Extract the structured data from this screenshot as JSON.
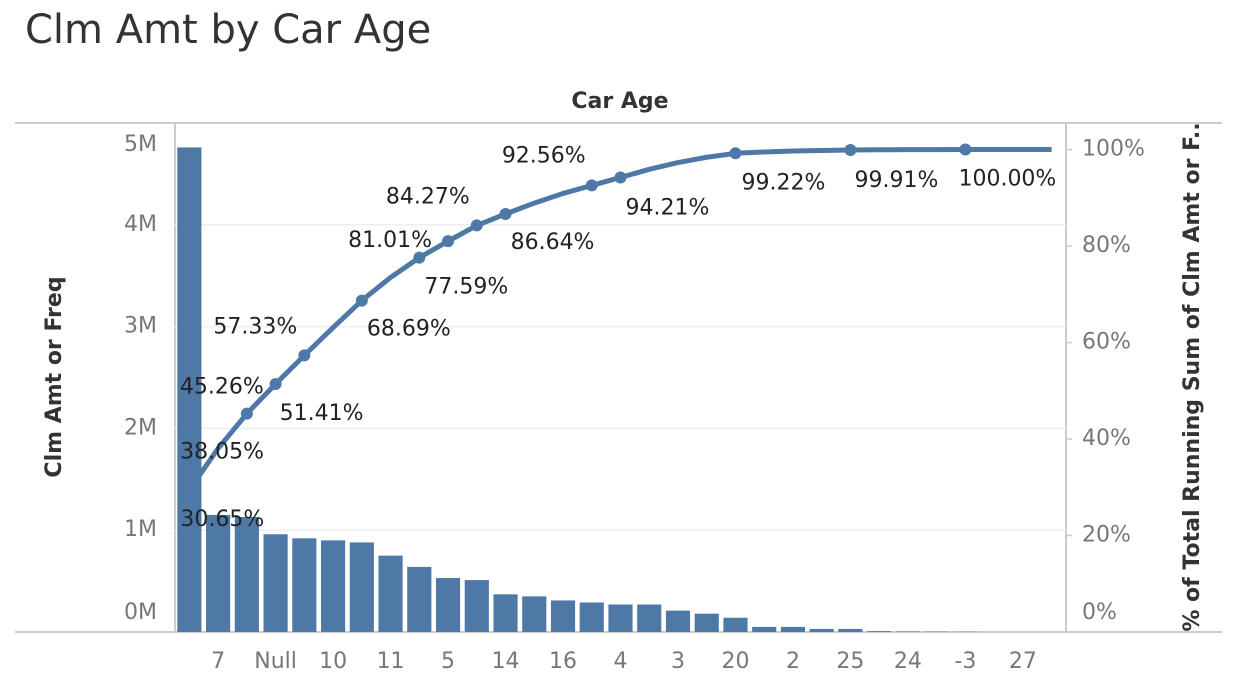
{
  "chart_data": {
    "type": "pareto",
    "title": "Clm Amt by Car Age",
    "x_label": "Car Age",
    "y_label": "Clm Amt or Freq",
    "y2_label": "% of Total Running Sum of Clm Amt or F..",
    "categories": [
      null,
      "7",
      null,
      "Null",
      null,
      "10",
      null,
      "11",
      null,
      "5",
      null,
      "14",
      null,
      "16",
      null,
      "4",
      null,
      "3",
      null,
      "20",
      null,
      "2",
      null,
      "25",
      null,
      "24",
      null,
      "-3",
      null,
      "27",
      null
    ],
    "series": [
      {
        "name": "Clm Amt or Freq",
        "color": "#4e79a7",
        "values": [
          4760000,
          1150000,
          1130000,
          960000,
          920000,
          900000,
          880000,
          750000,
          640000,
          530000,
          510000,
          370000,
          350000,
          310000,
          290000,
          270000,
          270000,
          210000,
          180000,
          140000,
          50000,
          50000,
          30000,
          30000,
          8000,
          5000,
          3000,
          2000,
          0,
          0,
          0
        ]
      },
      {
        "name": "% of Total Running Sum of Clm Amt or F..",
        "color": "#4e79a7",
        "axis": "y2",
        "values": [
          30.65,
          38.05,
          45.26,
          51.41,
          57.33,
          63.1,
          68.69,
          73.5,
          77.59,
          81.01,
          84.27,
          86.64,
          88.9,
          90.9,
          92.56,
          94.21,
          95.9,
          97.3,
          98.4,
          99.22,
          99.5,
          99.7,
          99.8,
          99.91,
          99.95,
          99.97,
          99.99,
          100.0,
          100.0,
          100.0,
          100.0
        ],
        "value_labels": [
          "30.65%",
          "38.05%",
          "45.26%",
          "51.41%",
          "57.33%",
          null,
          "68.69%",
          null,
          "77.59%",
          "81.01%",
          "84.27%",
          "86.64%",
          null,
          null,
          "92.56%",
          "94.21%",
          null,
          null,
          null,
          "99.22%",
          null,
          null,
          null,
          "99.91%",
          null,
          null,
          null,
          "100.00%",
          null,
          null,
          null
        ]
      }
    ],
    "ylim": [
      0,
      5000000
    ],
    "yticks": [
      {
        "value": 0,
        "label": "0M"
      },
      {
        "value": 1000000,
        "label": "1M"
      },
      {
        "value": 2000000,
        "label": "2M"
      },
      {
        "value": 3000000,
        "label": "3M"
      },
      {
        "value": 4000000,
        "label": "4M"
      },
      {
        "value": 5000000,
        "label": "5M"
      }
    ],
    "y2lim": [
      0,
      105.5
    ],
    "y2ticks": [
      {
        "value": 0,
        "label": "0%"
      },
      {
        "value": 20,
        "label": "20%"
      },
      {
        "value": 40,
        "label": "40%"
      },
      {
        "value": 60,
        "label": "60%"
      },
      {
        "value": 80,
        "label": "80%"
      },
      {
        "value": 100,
        "label": "100%"
      }
    ],
    "grid": true
  }
}
